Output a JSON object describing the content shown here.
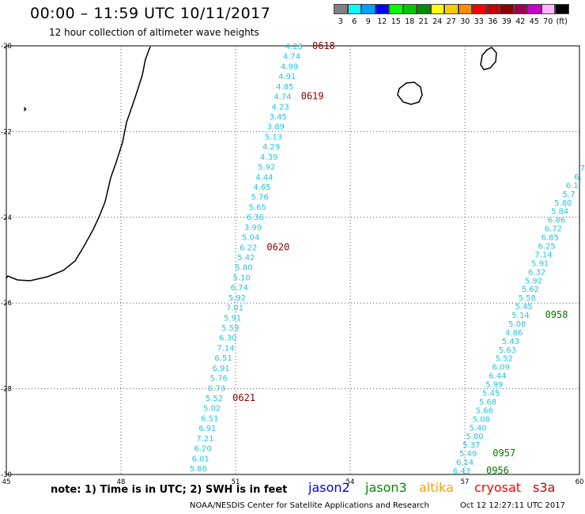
{
  "header": {
    "title": "00:00 – 11:59 UTC 10/11/2017",
    "subtitle": "12 hour collection of altimeter wave heights"
  },
  "legend": {
    "unit_label": "(ft)",
    "bins": [
      {
        "label": "3",
        "color": "#808080"
      },
      {
        "label": "6",
        "color": "#00ffff"
      },
      {
        "label": "9",
        "color": "#00a0ff"
      },
      {
        "label": "12",
        "color": "#0000ff"
      },
      {
        "label": "15",
        "color": "#00ff00"
      },
      {
        "label": "18",
        "color": "#00c800"
      },
      {
        "label": "21",
        "color": "#008c00"
      },
      {
        "label": "24",
        "color": "#ffff00"
      },
      {
        "label": "27",
        "color": "#ffc800"
      },
      {
        "label": "30",
        "color": "#ff8c00"
      },
      {
        "label": "33",
        "color": "#ff0000"
      },
      {
        "label": "36",
        "color": "#c80000"
      },
      {
        "label": "39",
        "color": "#8c0000"
      },
      {
        "label": "42",
        "color": "#a00050"
      },
      {
        "label": "45",
        "color": "#c800c8"
      },
      {
        "label": "70",
        "color": "#ffb4ff"
      },
      {
        "label": "",
        "color": "#000000"
      }
    ]
  },
  "map": {
    "lat_ticks": [
      "-20",
      "-22",
      "-24",
      "-26",
      "-28",
      "-30"
    ],
    "lon_ticks": [
      "45",
      "48",
      "51",
      "54",
      "57",
      "60"
    ],
    "track_west": {
      "values": [
        "4.23",
        "4.74",
        "4.99",
        "4.91",
        "4.85",
        "4.74",
        "4.23",
        "3.45",
        "3.89",
        "5.13",
        "4.29",
        "4.39",
        "5.92",
        "4.44",
        "4.65",
        "5.76",
        "5.65",
        "6.36",
        "3.99",
        "5.04",
        "6.22",
        "5.42",
        "5.80",
        "5.10",
        "6.74",
        "5.92",
        "7.01",
        "5.91",
        "5.59",
        "6.30",
        "7.14",
        "6.51",
        "6.91",
        "5.76",
        "6.73",
        "5.52",
        "5.02",
        "6.51",
        "6.91",
        "7.21",
        "6.20",
        "6.01",
        "5.86"
      ],
      "times": [
        {
          "label": "0618",
          "index": 0
        },
        {
          "label": "0619",
          "index": 5
        },
        {
          "label": "0620",
          "index": 20
        },
        {
          "label": "0621",
          "index": 35
        }
      ]
    },
    "track_east": {
      "values": [
        "7",
        "6.",
        "6.1",
        "5.7",
        "5.80",
        "5.84",
        "6.86",
        "6.72",
        "6.85",
        "6.25",
        "7.14",
        "5.91",
        "6.32",
        "5.92",
        "5.62",
        "5.58",
        "5.45",
        "5.14",
        "5.08",
        "4.86",
        "5.43",
        "5.63",
        "5.52",
        "6.09",
        "6.44",
        "5.99",
        "5.45",
        "5.68",
        "5.66",
        "5.08",
        "5.40",
        "5.80",
        "5.37",
        "5.49",
        "6.14",
        "6.43"
      ],
      "times": [
        {
          "label": "0958",
          "index": 17
        },
        {
          "label": "0957",
          "index": 33
        },
        {
          "label": "0956",
          "index": 35
        }
      ]
    }
  },
  "footer": {
    "note": "note: 1) Time is in UTC; 2) SWH is in feet",
    "satellites": [
      {
        "name": "jason2",
        "color": "#0000ff"
      },
      {
        "name": "jason3",
        "color": "#008c00"
      },
      {
        "name": "altika",
        "color": "#ffa000"
      },
      {
        "name": "cryosat",
        "color": "#ff0000"
      },
      {
        "name": "s3a",
        "color": "#c80000"
      }
    ],
    "credit": "NOAA/NESDIS Center for Satellite Applications and Research",
    "generated": "Oct 12 12:27:11 UTC 2017"
  }
}
